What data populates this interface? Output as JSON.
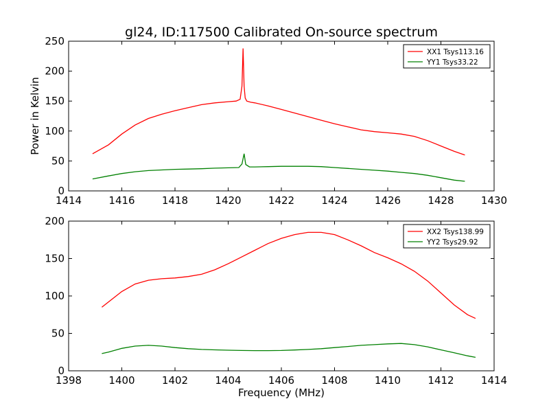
{
  "figure": {
    "title": "gl24, ID:117500 Calibrated On-source spectrum"
  },
  "chart_data": [
    {
      "type": "line",
      "ylabel": "Power in Kelvin",
      "xlabel": "",
      "xlim": [
        1414,
        1430
      ],
      "ylim": [
        0,
        250
      ],
      "xticks": [
        1414,
        1416,
        1418,
        1420,
        1422,
        1424,
        1426,
        1428,
        1430
      ],
      "yticks": [
        0,
        50,
        100,
        150,
        200,
        250
      ],
      "legend_position": "top-right",
      "series": [
        {
          "name": "XX1 Tsys113.16",
          "color": "#ff0000",
          "x": [
            1414.9,
            1415.5,
            1416.0,
            1416.5,
            1417.0,
            1417.5,
            1418.0,
            1418.5,
            1419.0,
            1419.5,
            1420.0,
            1420.3,
            1420.45,
            1420.52,
            1420.56,
            1420.6,
            1420.64,
            1420.7,
            1420.85,
            1421.0,
            1421.5,
            1422.0,
            1422.5,
            1423.0,
            1423.5,
            1424.0,
            1424.5,
            1425.0,
            1425.5,
            1426.0,
            1426.5,
            1427.0,
            1427.5,
            1428.0,
            1428.5,
            1428.9
          ],
          "y": [
            62,
            77,
            95,
            110,
            121,
            128,
            134,
            139,
            144,
            147,
            149,
            150,
            153,
            175,
            238,
            175,
            155,
            150,
            148,
            147,
            142,
            136,
            130,
            124,
            118,
            112,
            107,
            102,
            99,
            97,
            95,
            91,
            84,
            75,
            66,
            60
          ]
        },
        {
          "name": "YY1 Tsys33.22",
          "color": "#008000",
          "x": [
            1414.9,
            1415.5,
            1416.0,
            1416.5,
            1417.0,
            1417.5,
            1418.0,
            1418.5,
            1419.0,
            1419.5,
            1420.0,
            1420.4,
            1420.52,
            1420.6,
            1420.66,
            1420.8,
            1421.0,
            1421.5,
            1422.0,
            1422.5,
            1423.0,
            1423.5,
            1424.0,
            1424.5,
            1425.0,
            1425.5,
            1426.0,
            1426.5,
            1427.0,
            1427.5,
            1428.0,
            1428.5,
            1428.9
          ],
          "y": [
            20,
            25,
            29,
            32,
            34,
            35,
            36,
            36.5,
            37,
            38,
            38.5,
            39,
            45,
            62,
            44,
            40,
            40,
            40.5,
            41,
            41,
            41,
            40.5,
            39,
            37.5,
            36,
            34.5,
            33,
            31,
            29,
            26,
            22,
            18,
            16
          ]
        }
      ]
    },
    {
      "type": "line",
      "xlabel": "Frequency (MHz)",
      "ylabel": "",
      "xlim": [
        1398,
        1414
      ],
      "ylim": [
        0,
        200
      ],
      "xticks": [
        1398,
        1400,
        1402,
        1404,
        1406,
        1408,
        1410,
        1412,
        1414
      ],
      "yticks": [
        0,
        50,
        100,
        150,
        200
      ],
      "legend_position": "top-right",
      "series": [
        {
          "name": "XX2 Tsys138.99",
          "color": "#ff0000",
          "x": [
            1399.25,
            1399.5,
            1400.0,
            1400.5,
            1401.0,
            1401.5,
            1402.0,
            1402.5,
            1403.0,
            1403.5,
            1404.0,
            1404.5,
            1405.0,
            1405.5,
            1406.0,
            1406.5,
            1407.0,
            1407.5,
            1408.0,
            1408.5,
            1409.0,
            1409.5,
            1410.0,
            1410.5,
            1411.0,
            1411.5,
            1412.0,
            1412.5,
            1413.0,
            1413.3
          ],
          "y": [
            85,
            92,
            106,
            116,
            121,
            123,
            124,
            126,
            129,
            135,
            143,
            152,
            161,
            170,
            177,
            182,
            185,
            185,
            182,
            175,
            167,
            158,
            151,
            143,
            133,
            120,
            104,
            88,
            75,
            70
          ]
        },
        {
          "name": "YY2 Tsys29.92",
          "color": "#008000",
          "x": [
            1399.25,
            1399.5,
            1400.0,
            1400.5,
            1401.0,
            1401.5,
            1402.0,
            1402.5,
            1403.0,
            1403.5,
            1404.0,
            1404.5,
            1405.0,
            1405.5,
            1406.0,
            1406.5,
            1407.0,
            1407.5,
            1408.0,
            1408.5,
            1409.0,
            1409.5,
            1410.0,
            1410.5,
            1411.0,
            1411.5,
            1412.0,
            1412.5,
            1413.0,
            1413.3
          ],
          "y": [
            23,
            25,
            30,
            33,
            34,
            33,
            31,
            29.5,
            28.5,
            28,
            27.5,
            27.2,
            27,
            27,
            27.2,
            27.8,
            28.5,
            29.5,
            31,
            32.5,
            34,
            35,
            36,
            36.5,
            35,
            32,
            28,
            24,
            20,
            18
          ]
        }
      ]
    }
  ]
}
